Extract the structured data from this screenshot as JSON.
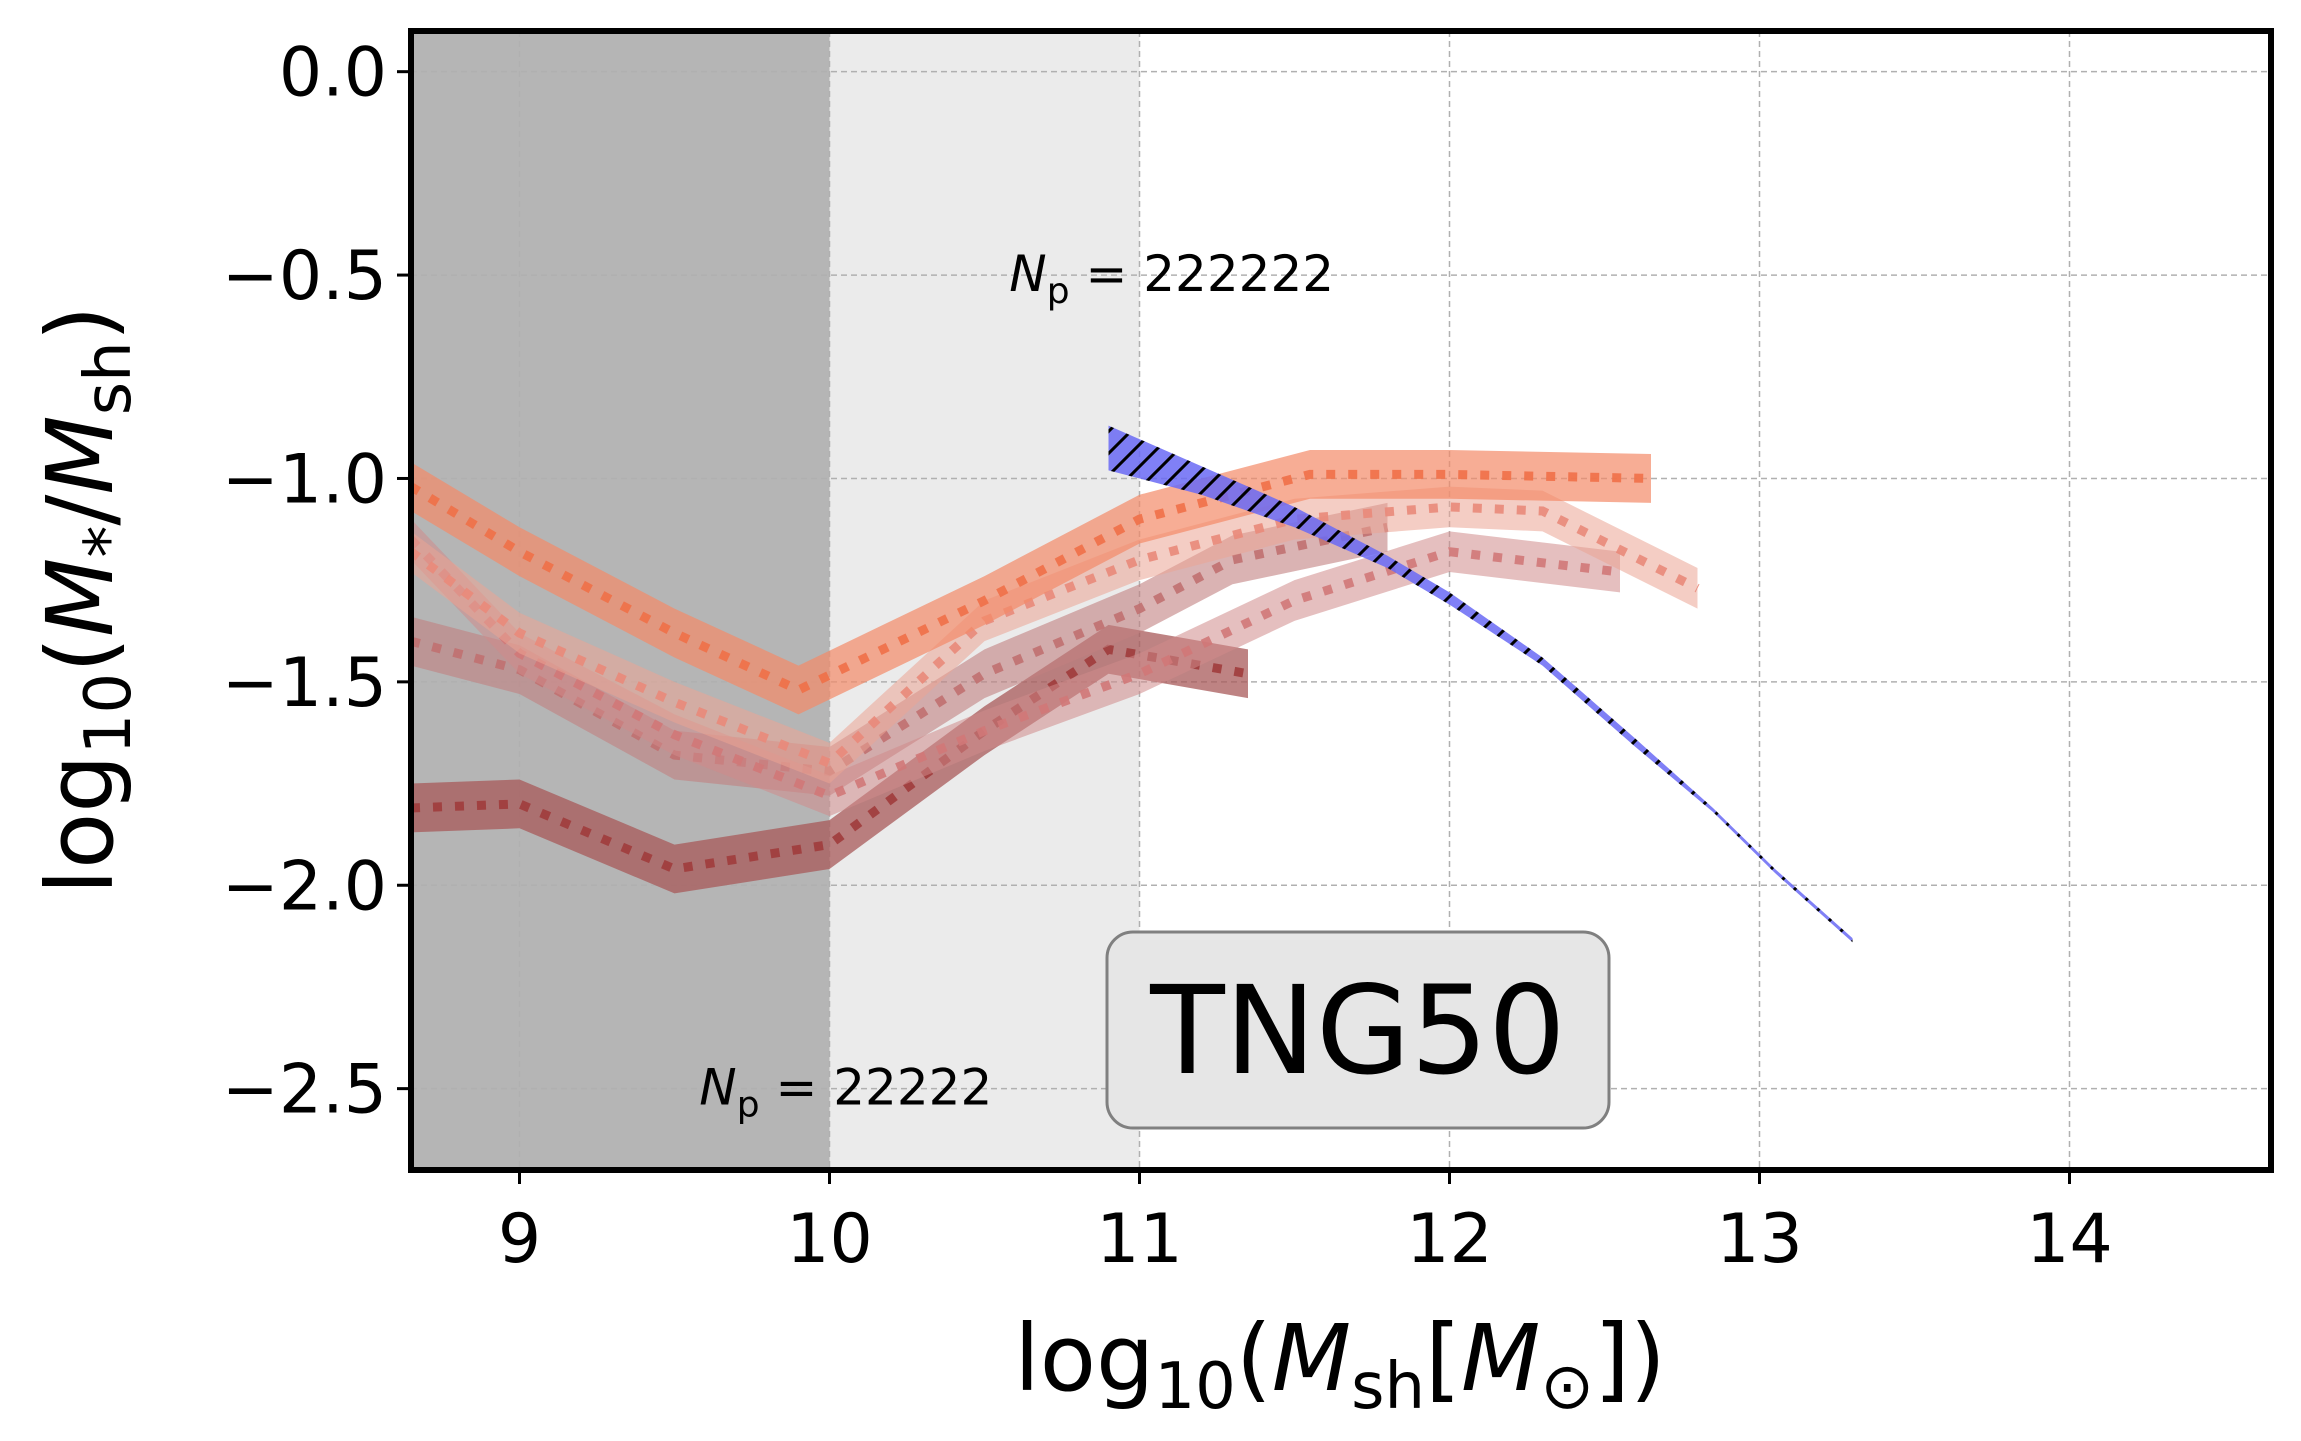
{
  "chart_data": {
    "type": "line",
    "title": "",
    "xlabel": "log10(Msh[M⊙])",
    "ylabel": "log10(M*/Msh)",
    "xlabel_parts": {
      "pre": "log",
      "sub": "10",
      "open": "(",
      "M": "M",
      "Msub": "sh",
      "bracket_open": "[",
      "M2": "M",
      "sun": "⊙",
      "close": "])"
    },
    "ylabel_parts": {
      "pre": "log",
      "sub": "10",
      "open": "(",
      "M": "M",
      "star": "*",
      "slash": "/",
      "M2": "M",
      "M2sub": "sh",
      "close": ")"
    },
    "xlim": [
      8.65,
      14.65
    ],
    "ylim": [
      -2.7,
      0.1
    ],
    "x_ticks": [
      9,
      10,
      11,
      12,
      13,
      14
    ],
    "x_tick_labels": [
      "9",
      "10",
      "11",
      "12",
      "13",
      "14"
    ],
    "y_ticks": [
      0.0,
      -0.5,
      -1.0,
      -1.5,
      -2.0,
      -2.5
    ],
    "y_tick_labels": [
      "0.0",
      "−0.5",
      "−1.0",
      "−1.5",
      "−2.0",
      "−2.5"
    ],
    "grid": true,
    "shaded_regions": [
      {
        "name": "dark",
        "x": [
          8.65,
          10.0
        ],
        "color": "#b5b5b5"
      },
      {
        "name": "light",
        "x": [
          10.0,
          11.0
        ],
        "color": "#ebebeb"
      }
    ],
    "annotations": [
      {
        "name": "np-222222",
        "N": "N",
        "sub": "p",
        "text": " = 222222",
        "x": 10.58,
        "y": -0.5
      },
      {
        "name": "np-22222",
        "N": "N",
        "sub": "p",
        "text": " = 22222",
        "x": 9.58,
        "y": -2.5
      }
    ],
    "label_box": {
      "text": "TNG50",
      "x": 11.72,
      "y": -2.34
    },
    "series": [
      {
        "name": "series-dark-red",
        "color": "#a03c3c",
        "fill": "#a85a5a",
        "opacity": 0.75,
        "width": 0.06,
        "x": [
          8.65,
          9.0,
          9.5,
          10.0,
          10.5,
          10.9,
          11.35
        ],
        "y": [
          -1.81,
          -1.8,
          -1.96,
          -1.9,
          -1.62,
          -1.42,
          -1.48
        ]
      },
      {
        "name": "series-brick",
        "color": "#c07070",
        "fill": "#c28080",
        "opacity": 0.6,
        "width": 0.06,
        "x": [
          8.65,
          9.0,
          9.5,
          10.0,
          10.5,
          11.0,
          11.3,
          11.8
        ],
        "y": [
          -1.4,
          -1.47,
          -1.68,
          -1.72,
          -1.48,
          -1.32,
          -1.2,
          -1.12
        ]
      },
      {
        "name": "series-rose",
        "color": "#d07878",
        "fill": "#d08a8a",
        "opacity": 0.55,
        "width": 0.05,
        "x": [
          8.65,
          9.0,
          9.5,
          10.0,
          10.5,
          11.0,
          11.5,
          12.0,
          12.55
        ],
        "y": [
          -1.15,
          -1.43,
          -1.63,
          -1.78,
          -1.62,
          -1.48,
          -1.3,
          -1.18,
          -1.23
        ]
      },
      {
        "name": "series-salmon",
        "color": "#e98a7a",
        "fill": "#eba494",
        "opacity": 0.55,
        "width": 0.05,
        "x": [
          8.65,
          9.0,
          9.5,
          10.0,
          10.5,
          11.0,
          11.5,
          12.0,
          12.3,
          12.8
        ],
        "y": [
          -1.18,
          -1.38,
          -1.55,
          -1.7,
          -1.35,
          -1.2,
          -1.1,
          -1.07,
          -1.08,
          -1.27
        ]
      },
      {
        "name": "series-orange",
        "color": "#f07048",
        "fill": "#f48a68",
        "opacity": 0.7,
        "width": 0.06,
        "x": [
          8.65,
          9.0,
          9.5,
          9.9,
          10.5,
          11.0,
          11.55,
          12.0,
          12.65
        ],
        "y": [
          -1.02,
          -1.18,
          -1.38,
          -1.52,
          -1.3,
          -1.1,
          -0.99,
          -0.99,
          -1.0
        ]
      },
      {
        "name": "series-blue-band",
        "color": "#4040ee",
        "fill": "#6a6af5",
        "opacity": 0.85,
        "hatched": true,
        "x": [
          10.9,
          11.2,
          11.5,
          11.8,
          12.0,
          12.3,
          12.6,
          12.85,
          13.05,
          13.3
        ],
        "y_top": [
          -0.87,
          -0.97,
          -1.07,
          -1.19,
          -1.28,
          -1.44,
          -1.64,
          -1.81,
          -1.96,
          -2.13
        ],
        "y_bottom": [
          -0.98,
          -1.04,
          -1.12,
          -1.22,
          -1.31,
          -1.46,
          -1.66,
          -1.82,
          -1.97,
          -2.14
        ]
      }
    ]
  }
}
